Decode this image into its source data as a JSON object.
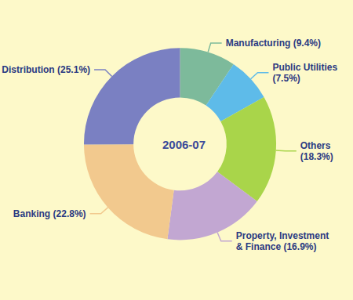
{
  "chart_data": {
    "type": "pie",
    "title": "2006-07",
    "categories": [
      "Manufacturing",
      "Public Utilities",
      "Others",
      "Property, Investment & Finance",
      "Banking",
      "Distribution"
    ],
    "values": [
      9.4,
      7.5,
      18.3,
      16.9,
      22.8,
      25.1
    ],
    "value_labels": [
      "Manufacturing (9.4%)",
      "Public Utilities (7.5%)",
      "Others (18.3%)",
      "Property, Investment & Finance (16.9%)",
      "Banking (22.8%)",
      "Distribution (25.1%)"
    ],
    "colors": [
      "#7dba9b",
      "#5ebbe9",
      "#a9d54a",
      "#c2a7d2",
      "#f2c98e",
      "#7a80c2"
    ],
    "data_labels": true
  }
}
